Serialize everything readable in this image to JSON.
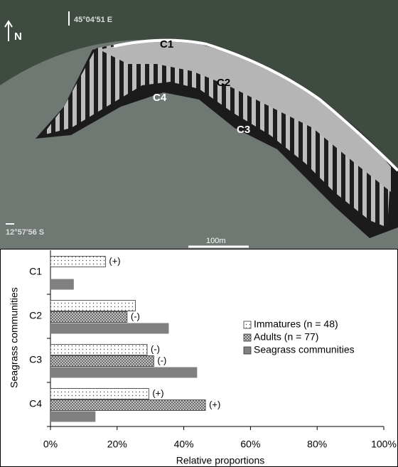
{
  "map_labels": {
    "north": "N",
    "longitude": "45°04'51 E",
    "latitude": "12°57'56 S",
    "scale": "100m",
    "zones": [
      "C1",
      "C2",
      "C3",
      "C4"
    ]
  },
  "chart_data": {
    "type": "hbar",
    "x_label": "Relative proportions",
    "y_label": "Seagrass communities",
    "categories": [
      "C1",
      "C2",
      "C3",
      "C4"
    ],
    "series": [
      {
        "name": "Immatures (n = 48)",
        "color": "#ffffff",
        "pattern": "dots",
        "values": [
          16.5,
          25.5,
          29,
          29.5
        ],
        "annotations": [
          "(+)",
          null,
          "(-)",
          "(+)"
        ]
      },
      {
        "name": "Adults (n = 77)",
        "color": "#c8c8c8",
        "pattern": "crosshatch",
        "values": [
          0,
          23,
          31,
          46.5
        ],
        "annotations": [
          null,
          "(-)",
          "(-)",
          "(+)"
        ]
      },
      {
        "name": "Seagrass communities",
        "color": "#808080",
        "pattern": "solid",
        "values": [
          7,
          35.5,
          44,
          13.5
        ],
        "annotations": [
          null,
          null,
          null,
          null
        ]
      }
    ],
    "xlim": [
      0,
      100
    ],
    "xticks": [
      {
        "value": 0,
        "label": "0%"
      },
      {
        "value": 20,
        "label": "20%"
      },
      {
        "value": 40,
        "label": "40%"
      },
      {
        "value": 60,
        "label": "60%"
      },
      {
        "value": 80,
        "label": "80%"
      },
      {
        "value": 100,
        "label": "100%"
      }
    ],
    "legend": "right"
  }
}
